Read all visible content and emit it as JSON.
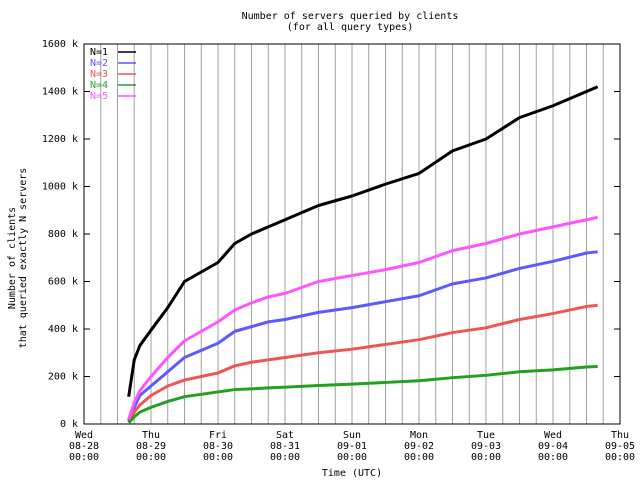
{
  "chart_data": {
    "type": "line",
    "title": "Number of servers queried by clients",
    "subtitle": "(for all query types)",
    "x_label": "Time (UTC)",
    "y_label": [
      "Number of clients",
      "that queried exactly N servers"
    ],
    "x": [
      "08-28 16:00",
      "08-28 18:00",
      "08-28 20:00",
      "08-29 00:00",
      "08-29 06:00",
      "08-29 12:00",
      "08-29 18:00",
      "08-30 00:00",
      "08-30 06:00",
      "08-30 12:00",
      "08-30 18:00",
      "08-31 00:00",
      "08-31 12:00",
      "09-01 00:00",
      "09-01 12:00",
      "09-02 00:00",
      "09-02 12:00",
      "09-03 00:00",
      "09-03 12:00",
      "09-04 00:00",
      "09-04 12:00",
      "09-04 16:00"
    ],
    "series": [
      {
        "name": "N=1",
        "color": "#000000",
        "values": [
          115,
          270,
          330,
          395,
          490,
          600,
          640,
          680,
          760,
          800,
          830,
          860,
          920,
          960,
          1010,
          1055,
          1150,
          1200,
          1290,
          1340,
          1400,
          1420
        ]
      },
      {
        "name": "N=2",
        "color": "#5a5aff",
        "values": [
          15,
          70,
          120,
          160,
          220,
          280,
          310,
          340,
          390,
          410,
          430,
          440,
          470,
          490,
          515,
          540,
          590,
          615,
          655,
          685,
          720,
          725
        ]
      },
      {
        "name": "N=3",
        "color": "#ee5555",
        "values": [
          10,
          50,
          80,
          120,
          160,
          185,
          200,
          215,
          245,
          260,
          270,
          280,
          300,
          315,
          335,
          355,
          385,
          405,
          440,
          465,
          495,
          500
        ]
      },
      {
        "name": "N=4",
        "color": "#22a022",
        "values": [
          5,
          30,
          50,
          70,
          95,
          115,
          125,
          135,
          145,
          148,
          152,
          155,
          162,
          168,
          175,
          182,
          195,
          205,
          220,
          228,
          240,
          242
        ]
      },
      {
        "name": "N=5",
        "color": "#ff55ff",
        "values": [
          20,
          90,
          140,
          200,
          280,
          350,
          390,
          430,
          480,
          510,
          535,
          550,
          600,
          625,
          650,
          680,
          730,
          760,
          800,
          830,
          860,
          870
        ]
      }
    ],
    "xlim": [
      "08-28 00:00",
      "09-05 00:00"
    ],
    "xticks": [
      {
        "value": "08-28 00:00",
        "label": [
          "Wed",
          "08-28",
          "00:00"
        ]
      },
      {
        "value": "08-29 00:00",
        "label": [
          "Thu",
          "08-29",
          "00:00"
        ]
      },
      {
        "value": "08-30 00:00",
        "label": [
          "Fri",
          "08-30",
          "00:00"
        ]
      },
      {
        "value": "08-31 00:00",
        "label": [
          "Sat",
          "08-31",
          "00:00"
        ]
      },
      {
        "value": "09-01 00:00",
        "label": [
          "Sun",
          "09-01",
          "00:00"
        ]
      },
      {
        "value": "09-02 00:00",
        "label": [
          "Mon",
          "09-02",
          "00:00"
        ]
      },
      {
        "value": "09-03 00:00",
        "label": [
          "Tue",
          "09-03",
          "00:00"
        ]
      },
      {
        "value": "09-04 00:00",
        "label": [
          "Wed",
          "09-04",
          "00:00"
        ]
      },
      {
        "value": "09-05 00:00",
        "label": [
          "Thu",
          "09-05",
          "00:00"
        ]
      }
    ],
    "ylim": [
      0,
      1600
    ],
    "yticks": [
      {
        "value": 0,
        "label": "0 k"
      },
      {
        "value": 200,
        "label": "200 k"
      },
      {
        "value": 400,
        "label": "400 k"
      },
      {
        "value": 600,
        "label": "600 k"
      },
      {
        "value": 800,
        "label": "800 k"
      },
      {
        "value": 1000,
        "label": "1000 k"
      },
      {
        "value": 1200,
        "label": "1200 k"
      },
      {
        "value": 1400,
        "label": "1400 k"
      },
      {
        "value": 1600,
        "label": "1600 k"
      }
    ],
    "grid": "x",
    "legend": "top-left"
  }
}
